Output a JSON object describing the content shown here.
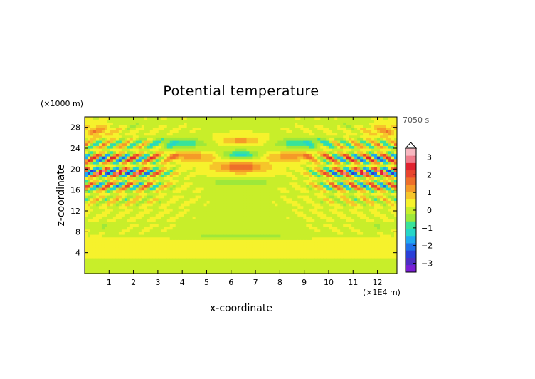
{
  "chart_data": {
    "type": "heatmap",
    "title": "Potential temperature",
    "xlabel": "x-coordinate",
    "ylabel": "z-coordinate",
    "x_unit": "(×1E4 m)",
    "y_unit": "(×1000 m)",
    "time_label": "7050 s",
    "xlim": [
      0,
      12.8
    ],
    "ylim": [
      0,
      30
    ],
    "x_ticks": [
      1,
      2,
      3,
      4,
      5,
      6,
      7,
      8,
      9,
      10,
      11,
      12
    ],
    "y_ticks": [
      4,
      8,
      12,
      16,
      20,
      24,
      28
    ],
    "colorbar": {
      "ticks": [
        3,
        2,
        1,
        0,
        -1,
        -2,
        -3
      ],
      "range": [
        -3.5,
        3.5
      ],
      "colors": [
        "#7a1fd6",
        "#4b2fc4",
        "#2a3fd8",
        "#1f6fe8",
        "#1fa8f0",
        "#25d6c8",
        "#38e39a",
        "#9ee83a",
        "#c8ee2a",
        "#f6f22c",
        "#f6c52a",
        "#f59a28",
        "#ee6f2a",
        "#e8452e",
        "#e0222f",
        "#f07c8c",
        "#f7b7c0"
      ]
    },
    "field_description_values": {
      "background": 0.2,
      "amplitude_range": [
        -3,
        3
      ]
    }
  }
}
